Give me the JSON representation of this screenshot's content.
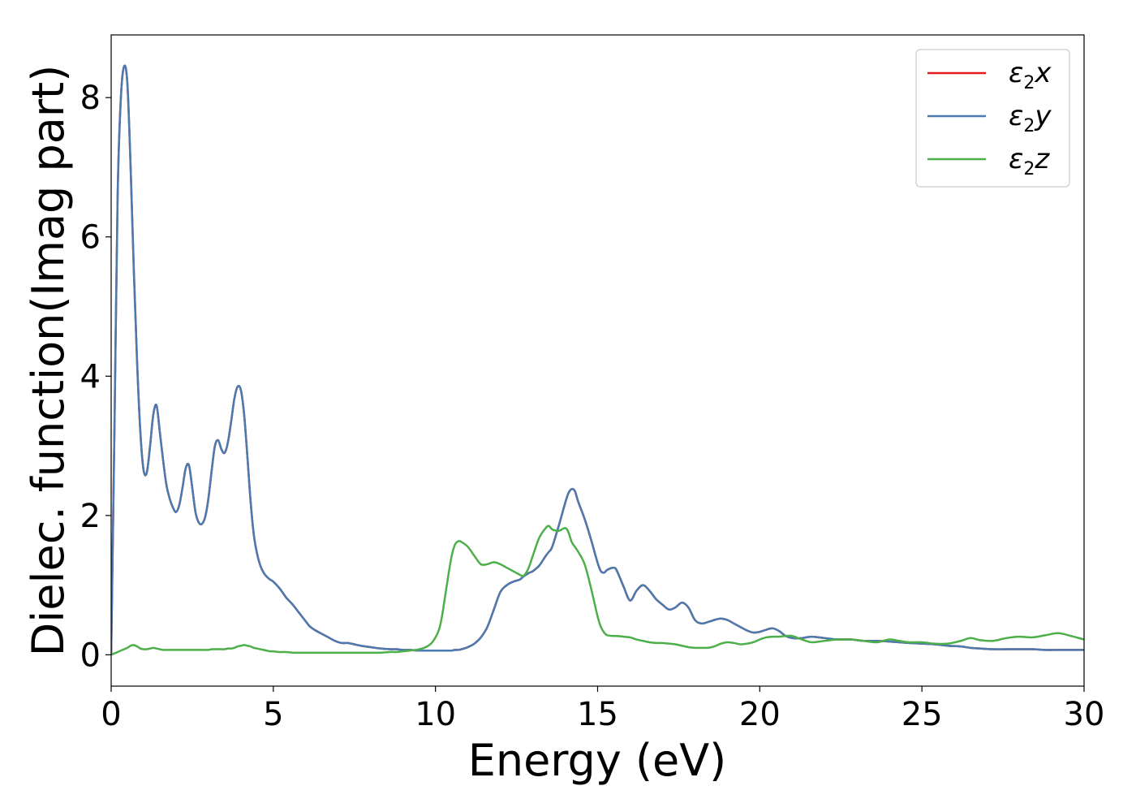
{
  "chart_data": {
    "type": "line",
    "title": "",
    "xlabel": "Energy (eV)",
    "ylabel": "Dielec. function(Imag part)",
    "xlim": [
      0,
      30
    ],
    "ylim": [
      -0.45,
      8.9
    ],
    "xticks": [
      0,
      5,
      10,
      15,
      20,
      25,
      30
    ],
    "xtick_labels": [
      "0",
      "5",
      "10",
      "15",
      "20",
      "25",
      "30"
    ],
    "yticks": [
      0,
      2,
      4,
      6,
      8
    ],
    "ytick_labels": [
      "0",
      "2",
      "4",
      "6",
      "8"
    ],
    "grid": false,
    "legend": {
      "placement": "top-right",
      "entries": [
        {
          "label_base": "ε",
          "label_sub": "2",
          "label_axis": "x",
          "color": "#e41a1c"
        },
        {
          "label_base": "ε",
          "label_sub": "2",
          "label_axis": "y",
          "color": "#4a7bb0"
        },
        {
          "label_base": "ε",
          "label_sub": "2",
          "label_axis": "z",
          "color": "#4daf4a"
        }
      ]
    },
    "x": [
      0,
      0.1,
      0.2,
      0.3,
      0.4,
      0.5,
      0.6,
      0.7,
      0.8,
      0.9,
      1.0,
      1.1,
      1.2,
      1.3,
      1.4,
      1.5,
      1.6,
      1.7,
      1.8,
      1.9,
      2.0,
      2.1,
      2.2,
      2.3,
      2.4,
      2.5,
      2.6,
      2.7,
      2.8,
      2.9,
      3.0,
      3.1,
      3.2,
      3.3,
      3.4,
      3.5,
      3.6,
      3.7,
      3.8,
      3.9,
      4.0,
      4.1,
      4.2,
      4.3,
      4.4,
      4.5,
      4.6,
      4.7,
      4.8,
      4.9,
      5.0,
      5.2,
      5.4,
      5.6,
      5.8,
      6.0,
      6.1,
      6.2,
      6.3,
      6.5,
      6.7,
      6.9,
      7.1,
      7.3,
      7.5,
      7.7,
      8.0,
      8.3,
      8.6,
      8.8,
      9.0,
      9.2,
      9.5,
      9.7,
      9.9,
      10.1,
      10.2,
      10.3,
      10.4,
      10.5,
      10.6,
      10.7,
      10.8,
      11.0,
      11.2,
      11.4,
      11.6,
      11.8,
      12.0,
      12.2,
      12.4,
      12.6,
      12.7,
      12.8,
      12.9,
      13.0,
      13.2,
      13.4,
      13.5,
      13.6,
      13.8,
      14.0,
      14.1,
      14.2,
      14.3,
      14.4,
      14.6,
      14.8,
      15.0,
      15.1,
      15.2,
      15.3,
      15.5,
      15.6,
      15.8,
      16.0,
      16.2,
      16.4,
      16.6,
      16.8,
      17.0,
      17.2,
      17.4,
      17.6,
      17.8,
      18.0,
      18.2,
      18.4,
      18.6,
      18.8,
      19.0,
      19.2,
      19.4,
      19.6,
      19.8,
      20.0,
      20.2,
      20.4,
      20.6,
      20.8,
      21.0,
      21.3,
      21.6,
      22.0,
      22.4,
      22.8,
      23.2,
      23.6,
      24.0,
      24.3,
      24.6,
      25.0,
      25.4,
      25.8,
      26.2,
      26.5,
      26.8,
      27.2,
      27.6,
      28.0,
      28.4,
      28.8,
      29.2,
      29.6,
      30.0
    ],
    "series": [
      {
        "key": "x",
        "color": "#e41a1c",
        "values": [
          0,
          3.2,
          6.6,
          8.0,
          8.45,
          8.2,
          7.0,
          5.5,
          4.2,
          3.2,
          2.65,
          2.62,
          3.0,
          3.45,
          3.58,
          3.2,
          2.8,
          2.45,
          2.25,
          2.12,
          2.05,
          2.15,
          2.4,
          2.68,
          2.72,
          2.4,
          2.05,
          1.9,
          1.88,
          1.98,
          2.25,
          2.65,
          3.0,
          3.08,
          2.95,
          2.9,
          3.05,
          3.35,
          3.68,
          3.85,
          3.8,
          3.45,
          2.85,
          2.2,
          1.72,
          1.45,
          1.28,
          1.18,
          1.12,
          1.08,
          1.05,
          0.95,
          0.82,
          0.72,
          0.6,
          0.48,
          0.42,
          0.38,
          0.35,
          0.3,
          0.25,
          0.2,
          0.17,
          0.17,
          0.15,
          0.13,
          0.11,
          0.09,
          0.08,
          0.08,
          0.07,
          0.07,
          0.06,
          0.06,
          0.06,
          0.06,
          0.06,
          0.06,
          0.06,
          0.06,
          0.07,
          0.07,
          0.08,
          0.11,
          0.16,
          0.25,
          0.4,
          0.65,
          0.9,
          1.0,
          1.05,
          1.08,
          1.12,
          1.15,
          1.18,
          1.2,
          1.28,
          1.42,
          1.48,
          1.55,
          1.85,
          2.18,
          2.32,
          2.38,
          2.35,
          2.2,
          1.95,
          1.65,
          1.32,
          1.2,
          1.18,
          1.22,
          1.25,
          1.2,
          0.98,
          0.78,
          0.92,
          1.0,
          0.92,
          0.8,
          0.72,
          0.65,
          0.68,
          0.75,
          0.68,
          0.5,
          0.45,
          0.47,
          0.5,
          0.52,
          0.5,
          0.45,
          0.4,
          0.35,
          0.32,
          0.33,
          0.36,
          0.38,
          0.34,
          0.27,
          0.24,
          0.24,
          0.26,
          0.24,
          0.22,
          0.22,
          0.2,
          0.2,
          0.19,
          0.18,
          0.17,
          0.16,
          0.15,
          0.13,
          0.12,
          0.1,
          0.09,
          0.08,
          0.08,
          0.08,
          0.08,
          0.07,
          0.07,
          0.07,
          0.07
        ]
      },
      {
        "key": "y",
        "color": "#4a7bb0",
        "values": [
          0,
          3.2,
          6.6,
          8.0,
          8.45,
          8.2,
          7.0,
          5.5,
          4.2,
          3.2,
          2.65,
          2.62,
          3.0,
          3.45,
          3.58,
          3.2,
          2.8,
          2.45,
          2.25,
          2.12,
          2.05,
          2.15,
          2.4,
          2.68,
          2.72,
          2.4,
          2.05,
          1.9,
          1.88,
          1.98,
          2.25,
          2.65,
          3.0,
          3.08,
          2.95,
          2.9,
          3.05,
          3.35,
          3.68,
          3.85,
          3.8,
          3.45,
          2.85,
          2.2,
          1.72,
          1.45,
          1.28,
          1.18,
          1.12,
          1.08,
          1.05,
          0.95,
          0.82,
          0.72,
          0.6,
          0.48,
          0.42,
          0.38,
          0.35,
          0.3,
          0.25,
          0.2,
          0.17,
          0.17,
          0.15,
          0.13,
          0.11,
          0.09,
          0.08,
          0.08,
          0.07,
          0.07,
          0.06,
          0.06,
          0.06,
          0.06,
          0.06,
          0.06,
          0.06,
          0.06,
          0.07,
          0.07,
          0.08,
          0.11,
          0.16,
          0.25,
          0.4,
          0.65,
          0.9,
          1.0,
          1.05,
          1.08,
          1.12,
          1.15,
          1.18,
          1.2,
          1.28,
          1.42,
          1.48,
          1.55,
          1.85,
          2.18,
          2.32,
          2.38,
          2.35,
          2.2,
          1.95,
          1.65,
          1.32,
          1.2,
          1.18,
          1.22,
          1.25,
          1.2,
          0.98,
          0.78,
          0.92,
          1.0,
          0.92,
          0.8,
          0.72,
          0.65,
          0.68,
          0.75,
          0.68,
          0.5,
          0.45,
          0.47,
          0.5,
          0.52,
          0.5,
          0.45,
          0.4,
          0.35,
          0.32,
          0.33,
          0.36,
          0.38,
          0.34,
          0.27,
          0.24,
          0.24,
          0.26,
          0.24,
          0.22,
          0.22,
          0.2,
          0.2,
          0.19,
          0.18,
          0.17,
          0.16,
          0.15,
          0.13,
          0.12,
          0.1,
          0.09,
          0.08,
          0.08,
          0.08,
          0.08,
          0.07,
          0.07,
          0.07,
          0.07
        ]
      },
      {
        "key": "z",
        "color": "#4daf4a",
        "values": [
          0.0,
          0.02,
          0.04,
          0.06,
          0.08,
          0.1,
          0.13,
          0.14,
          0.12,
          0.09,
          0.08,
          0.08,
          0.09,
          0.1,
          0.09,
          0.08,
          0.07,
          0.07,
          0.07,
          0.07,
          0.07,
          0.07,
          0.07,
          0.07,
          0.07,
          0.07,
          0.07,
          0.07,
          0.07,
          0.07,
          0.07,
          0.08,
          0.08,
          0.08,
          0.08,
          0.08,
          0.09,
          0.09,
          0.1,
          0.12,
          0.13,
          0.14,
          0.13,
          0.12,
          0.1,
          0.09,
          0.08,
          0.07,
          0.06,
          0.05,
          0.05,
          0.04,
          0.04,
          0.03,
          0.03,
          0.03,
          0.03,
          0.03,
          0.03,
          0.03,
          0.03,
          0.03,
          0.03,
          0.03,
          0.03,
          0.03,
          0.03,
          0.03,
          0.04,
          0.04,
          0.05,
          0.06,
          0.08,
          0.11,
          0.18,
          0.35,
          0.55,
          0.85,
          1.15,
          1.42,
          1.58,
          1.63,
          1.62,
          1.55,
          1.42,
          1.3,
          1.3,
          1.33,
          1.3,
          1.25,
          1.2,
          1.15,
          1.13,
          1.18,
          1.28,
          1.42,
          1.68,
          1.82,
          1.85,
          1.8,
          1.78,
          1.82,
          1.76,
          1.62,
          1.55,
          1.48,
          1.3,
          0.95,
          0.55,
          0.4,
          0.32,
          0.28,
          0.27,
          0.27,
          0.26,
          0.25,
          0.22,
          0.2,
          0.18,
          0.17,
          0.17,
          0.16,
          0.15,
          0.13,
          0.11,
          0.1,
          0.1,
          0.1,
          0.12,
          0.16,
          0.18,
          0.17,
          0.15,
          0.16,
          0.18,
          0.22,
          0.25,
          0.26,
          0.26,
          0.27,
          0.27,
          0.22,
          0.18,
          0.2,
          0.22,
          0.22,
          0.2,
          0.18,
          0.22,
          0.2,
          0.18,
          0.18,
          0.16,
          0.16,
          0.2,
          0.24,
          0.21,
          0.2,
          0.24,
          0.26,
          0.25,
          0.28,
          0.31,
          0.27,
          0.22
        ]
      }
    ]
  }
}
